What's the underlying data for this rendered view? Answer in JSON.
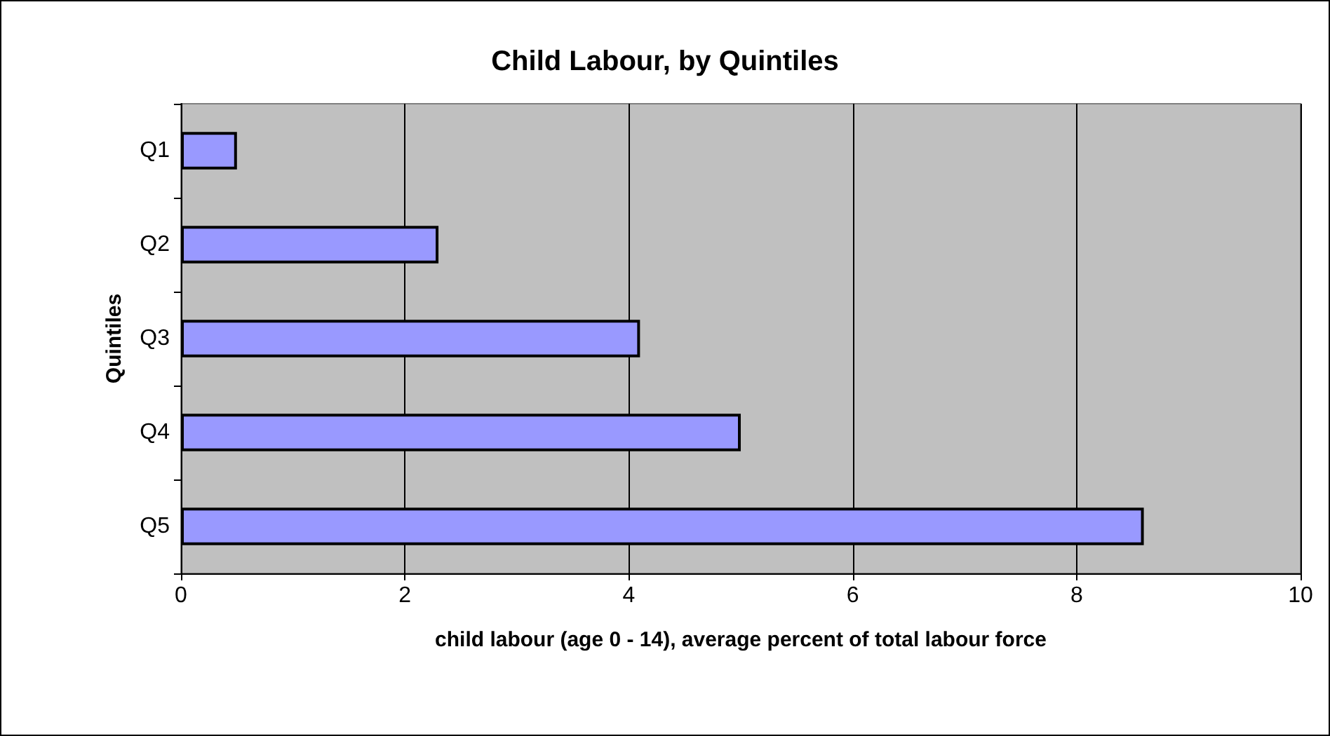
{
  "chart_data": {
    "type": "bar",
    "orientation": "horizontal",
    "title": "Child Labour, by Quintiles",
    "xlabel": "child labour (age 0 - 14), average percent of total labour force",
    "ylabel": "Quintiles",
    "categories": [
      "Q1",
      "Q2",
      "Q3",
      "Q4",
      "Q5"
    ],
    "values": [
      0.5,
      2.3,
      4.1,
      5.0,
      8.6
    ],
    "color": "#9999ff",
    "xlim": [
      0,
      10
    ],
    "xticks": [
      0,
      2,
      4,
      6,
      8,
      10
    ],
    "grid": "x"
  }
}
